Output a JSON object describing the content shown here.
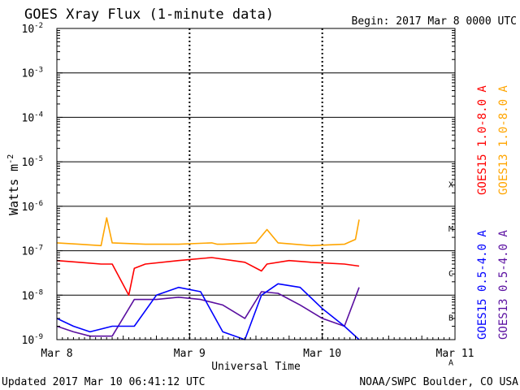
{
  "header": {
    "title": "GOES Xray Flux (1-minute data)",
    "begin": "Begin:  2017 Mar 8 0000 UTC"
  },
  "footer": {
    "updated": "Updated 2017 Mar 10 06:41:12 UTC",
    "credit": "NOAA/SWPC Boulder, CO USA"
  },
  "axes": {
    "ylabel_base": "Watts m",
    "ylabel_sup": "-2",
    "xlabel": "Universal Time",
    "y_base": "10",
    "y_exponents": [
      "-2",
      "-3",
      "-4",
      "-5",
      "-6",
      "-7",
      "-8",
      "-9"
    ],
    "x_ticks": [
      "Mar 8",
      "Mar 9",
      "Mar 10",
      "Mar 11"
    ],
    "flare_classes": [
      "X",
      "M",
      "C",
      "B",
      "A"
    ]
  },
  "legend": {
    "goes15_long": "GOES15 1.0-8.0 A",
    "goes13_long": "GOES13 1.0-8.0 A",
    "goes15_short": "GOES15 0.5-4.0 A",
    "goes13_short": "GOES13 0.5-4.0 A"
  },
  "colors": {
    "goes15_long": "#ff0000",
    "goes13_long": "#ffa500",
    "goes15_short": "#0000ff",
    "goes13_short": "#5a0fa0"
  },
  "chart_data": {
    "type": "line",
    "title": "GOES Xray Flux (1-minute data)",
    "xlabel": "Universal Time",
    "ylabel": "Watts m-2",
    "y_scale": "log",
    "ylim": [
      1e-09,
      0.01
    ],
    "xlim": [
      "2017-03-08 00:00",
      "2017-03-11 00:00"
    ],
    "grid": true,
    "legend_position": "right",
    "series": [
      {
        "name": "GOES13 1.0-8.0 A",
        "color": "#ffa500",
        "x": [
          "2017-03-08 00:00",
          "2017-03-08 04:00",
          "2017-03-08 08:00",
          "2017-03-08 09:00",
          "2017-03-08 10:00",
          "2017-03-08 16:00",
          "2017-03-08 22:00",
          "2017-03-09 04:00",
          "2017-03-09 05:00",
          "2017-03-09 06:00",
          "2017-03-09 12:00",
          "2017-03-09 14:00",
          "2017-03-09 16:00",
          "2017-03-09 22:00",
          "2017-03-10 04:00",
          "2017-03-10 06:00",
          "2017-03-10 06:40"
        ],
        "y": [
          1.5e-07,
          1.4e-07,
          1.3e-07,
          5.5e-07,
          1.5e-07,
          1.4e-07,
          1.4e-07,
          1.5e-07,
          1.4e-07,
          1.4e-07,
          1.5e-07,
          3e-07,
          1.5e-07,
          1.3e-07,
          1.4e-07,
          1.8e-07,
          5e-07
        ]
      },
      {
        "name": "GOES15 1.0-8.0 A",
        "color": "#ff0000",
        "x": [
          "2017-03-08 00:00",
          "2017-03-08 04:00",
          "2017-03-08 08:00",
          "2017-03-08 10:00",
          "2017-03-08 13:00",
          "2017-03-08 14:00",
          "2017-03-08 16:00",
          "2017-03-08 22:00",
          "2017-03-09 04:00",
          "2017-03-09 10:00",
          "2017-03-09 13:00",
          "2017-03-09 14:00",
          "2017-03-09 18:00",
          "2017-03-09 22:00",
          "2017-03-10 04:00",
          "2017-03-10 06:40"
        ],
        "y": [
          6e-08,
          5.5e-08,
          5e-08,
          5e-08,
          1e-08,
          4e-08,
          5e-08,
          6e-08,
          7e-08,
          5.5e-08,
          3.5e-08,
          5e-08,
          6e-08,
          5.5e-08,
          5e-08,
          4.5e-08
        ]
      },
      {
        "name": "GOES15 0.5-4.0 A",
        "color": "#0000ff",
        "x": [
          "2017-03-08 00:00",
          "2017-03-08 03:00",
          "2017-03-08 06:00",
          "2017-03-08 10:00",
          "2017-03-08 14:00",
          "2017-03-08 18:00",
          "2017-03-08 22:00",
          "2017-03-09 02:00",
          "2017-03-09 06:00",
          "2017-03-09 10:00",
          "2017-03-09 13:00",
          "2017-03-09 16:00",
          "2017-03-09 20:00",
          "2017-03-10 00:00",
          "2017-03-10 04:00",
          "2017-03-10 06:40"
        ],
        "y": [
          3e-09,
          2e-09,
          1.5e-09,
          2e-09,
          2e-09,
          1e-08,
          1.5e-08,
          1.2e-08,
          1.5e-09,
          1e-09,
          1e-08,
          1.8e-08,
          1.5e-08,
          5e-09,
          2e-09,
          1e-09
        ]
      },
      {
        "name": "GOES13 0.5-4.0 A",
        "color": "#5a0fa0",
        "x": [
          "2017-03-08 00:00",
          "2017-03-08 03:00",
          "2017-03-08 06:00",
          "2017-03-08 10:00",
          "2017-03-08 14:00",
          "2017-03-08 18:00",
          "2017-03-08 22:00",
          "2017-03-09 02:00",
          "2017-03-09 06:00",
          "2017-03-09 10:00",
          "2017-03-09 13:00",
          "2017-03-09 16:00",
          "2017-03-09 20:00",
          "2017-03-10 00:00",
          "2017-03-10 04:00",
          "2017-03-10 06:40"
        ],
        "y": [
          2e-09,
          1.5e-09,
          1.2e-09,
          1.2e-09,
          8e-09,
          8e-09,
          9e-09,
          8e-09,
          6e-09,
          3e-09,
          1.2e-08,
          1.1e-08,
          6e-09,
          3e-09,
          2e-09,
          1.5e-08
        ]
      }
    ]
  }
}
